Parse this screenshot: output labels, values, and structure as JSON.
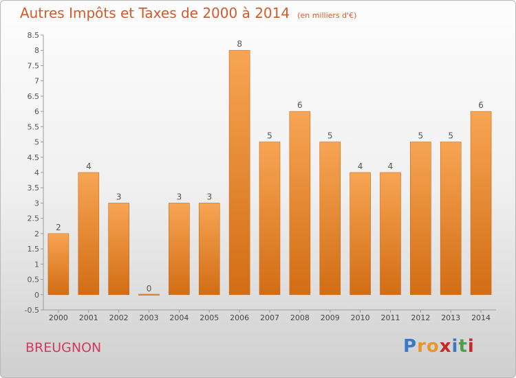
{
  "title": "Autres Impôts et Taxes de 2000 à 2014",
  "subtitle": "(en milliers d'€)",
  "commune": "BREUGNON",
  "logo": {
    "text": "Proxiti",
    "letters": [
      "P",
      "r",
      "o",
      "x",
      "i",
      "t",
      "i"
    ],
    "colors": [
      "#3a78c8",
      "#e8962a",
      "#e8962a",
      "#c8282a",
      "#3a78c8",
      "#4aa04a",
      "#c8282a"
    ]
  },
  "colors": {
    "bar_top": "#f7a554",
    "bar_bottom": "#d26d14",
    "title": "#d25a2c",
    "commune": "#d03a5c"
  },
  "chart_data": {
    "type": "bar",
    "categories": [
      "2000",
      "2001",
      "2002",
      "2003",
      "2004",
      "2005",
      "2006",
      "2007",
      "2008",
      "2009",
      "2010",
      "2011",
      "2012",
      "2013",
      "2014"
    ],
    "values": [
      2,
      4,
      3,
      0,
      3,
      3,
      8,
      5,
      6,
      5,
      4,
      4,
      5,
      5,
      6
    ],
    "data_labels": [
      "2",
      "4",
      "3",
      "0",
      "3",
      "3",
      "8",
      "5",
      "6",
      "5",
      "4",
      "4",
      "5",
      "5",
      "6"
    ],
    "yticks": [
      -0.5,
      0,
      0.5,
      1,
      1.5,
      2,
      2.5,
      3,
      3.5,
      4,
      4.5,
      5,
      5.5,
      6,
      6.5,
      7,
      7.5,
      8,
      8.5
    ],
    "ytick_labels": [
      "-0.5",
      "0",
      "0.5",
      "1",
      "1.5",
      "2",
      "2.5",
      "3",
      "3.5",
      "4",
      "4.5",
      "5",
      "5.5",
      "6",
      "6.5",
      "7",
      "7.5",
      "8",
      "8.5"
    ],
    "ylim": [
      -0.5,
      8.5
    ],
    "title": "Autres Impôts et Taxes de 2000 à 2014",
    "xlabel": "",
    "ylabel": "",
    "grid": false,
    "legend": "none"
  }
}
